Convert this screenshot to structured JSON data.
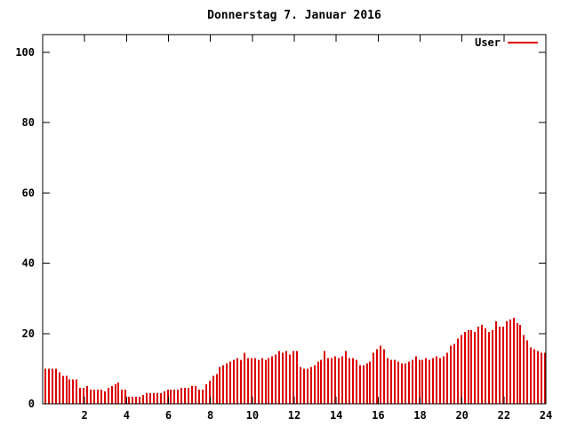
{
  "colors": {
    "series_red": "#dd0000",
    "axis": "#000000",
    "background": "#ffffff",
    "text": "#000000"
  },
  "chart_data": {
    "type": "bar",
    "style": "impulses",
    "title": "Donnerstag 7. Januar 2016",
    "xlabel": "",
    "ylabel": "",
    "xlim": [
      0,
      24
    ],
    "ylim": [
      0,
      105
    ],
    "xticks": [
      2,
      4,
      6,
      8,
      10,
      12,
      14,
      16,
      18,
      20,
      22,
      24
    ],
    "yticks": [
      0,
      20,
      40,
      60,
      80,
      100
    ],
    "grid": false,
    "legend_position": "top-right-inside",
    "series": [
      {
        "name": "User",
        "color": "#dd0000",
        "x_start_hour": 0.1667,
        "x_step_hours": 0.1667,
        "values": [
          10,
          10,
          10,
          10,
          9,
          8,
          8,
          7,
          7,
          7,
          4.5,
          4.5,
          5,
          4,
          4,
          4,
          4,
          3.5,
          4.5,
          5,
          5.5,
          6,
          4,
          4,
          2,
          2,
          2,
          2,
          2.5,
          3,
          3,
          3,
          3,
          3,
          3.5,
          4,
          4,
          4,
          4,
          4.5,
          4.5,
          4.5,
          5,
          5,
          4,
          4,
          5.5,
          6.5,
          8,
          8.5,
          10.5,
          11,
          11.5,
          12,
          12.5,
          13,
          12.5,
          14.5,
          13,
          13,
          13,
          12.5,
          13,
          12.5,
          13,
          13.5,
          14,
          15,
          14.5,
          15,
          14,
          15,
          15,
          10.5,
          10,
          10,
          10.5,
          11,
          12,
          12.5,
          15,
          13,
          13,
          13.5,
          13,
          13.5,
          15,
          13,
          13,
          12.5,
          11,
          11,
          11.5,
          12,
          14.5,
          15.5,
          16.5,
          15.5,
          13,
          12.5,
          12.5,
          12,
          11.5,
          11.5,
          12,
          12.5,
          13.5,
          12.5,
          12.5,
          13,
          12.5,
          13,
          13.5,
          13,
          13.5,
          14.5,
          16.5,
          17,
          18.5,
          19.5,
          20.5,
          21,
          21,
          20.5,
          22,
          22.5,
          21.5,
          20.5,
          21,
          23.5,
          22,
          22,
          23.5,
          24,
          24.5,
          23,
          22.5,
          19.5,
          18,
          16,
          15.5,
          15,
          14.5,
          14.5
        ]
      }
    ]
  }
}
